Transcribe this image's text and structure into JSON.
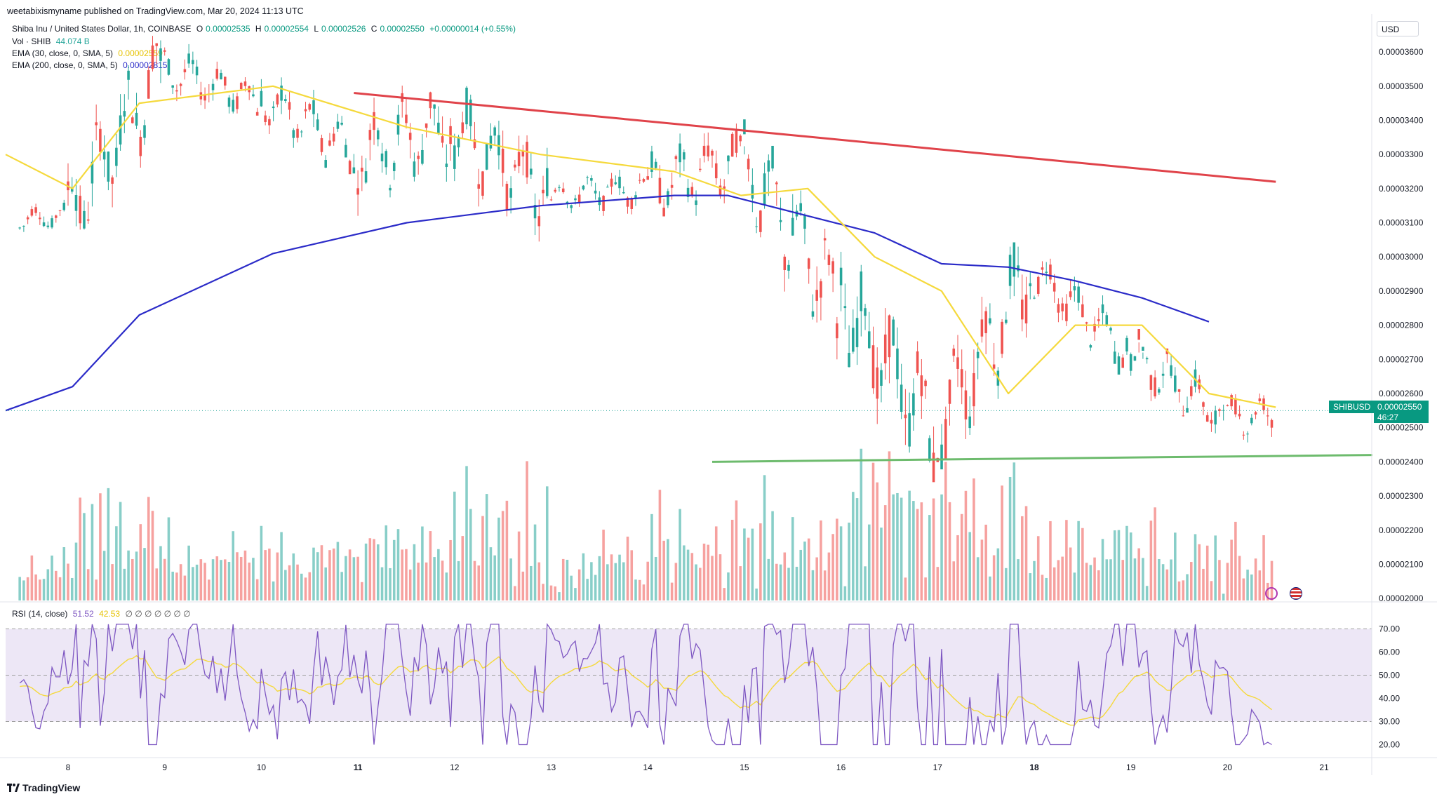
{
  "header": {
    "publisher": "weetabixismyname published on TradingView.com, Mar 20, 2024 11:13 UTC"
  },
  "legend": {
    "symbol": "Shiba Inu / United States Dollar, 1h, COINBASE",
    "open_label": "O",
    "open": "0.00002535",
    "high_label": "H",
    "high": "0.00002554",
    "low_label": "L",
    "low": "0.00002526",
    "close_label": "C",
    "close": "0.00002550",
    "change": "+0.00000014 (+0.55%)",
    "volume_label": "Vol · SHIB",
    "volume_value": "44.074 B",
    "ema30_label": "EMA (30, close, 0, SMA, 5)",
    "ema30_value": "0.00002559",
    "ema200_label": "EMA (200, close, 0, SMA, 5)",
    "ema200_value": "0.00002815"
  },
  "price_axis": {
    "currency": "USD",
    "ticks": [
      "0.00003600",
      "0.00003500",
      "0.00003400",
      "0.00003300",
      "0.00003200",
      "0.00003100",
      "0.00003000",
      "0.00002900",
      "0.00002800",
      "0.00002700",
      "0.00002600",
      "0.00002500",
      "0.00002400",
      "0.00002300",
      "0.00002200",
      "0.00002100",
      "0.00002000"
    ]
  },
  "current_price": {
    "symbol_tag": "SHIBUSD",
    "price": "0.00002550",
    "countdown": "46:27"
  },
  "rsi": {
    "label": "RSI (14, close)",
    "value": "51.52",
    "ma_value": "42.53",
    "ticks": [
      "70.00",
      "60.00",
      "50.00",
      "40.00",
      "30.00",
      "20.00"
    ]
  },
  "time_axis": {
    "ticks": [
      {
        "label": "8",
        "bold": false
      },
      {
        "label": "9",
        "bold": false
      },
      {
        "label": "10",
        "bold": false
      },
      {
        "label": "11",
        "bold": true
      },
      {
        "label": "12",
        "bold": false
      },
      {
        "label": "13",
        "bold": false
      },
      {
        "label": "14",
        "bold": false
      },
      {
        "label": "15",
        "bold": false
      },
      {
        "label": "16",
        "bold": false
      },
      {
        "label": "17",
        "bold": false
      },
      {
        "label": "18",
        "bold": true
      },
      {
        "label": "19",
        "bold": false
      },
      {
        "label": "20",
        "bold": false
      },
      {
        "label": "21",
        "bold": false
      }
    ]
  },
  "brand": "TradingView",
  "colors": {
    "up": "#26a69a",
    "down": "#ef5350",
    "ema30": "#f5d93c",
    "ema200": "#2b2bc8",
    "resistance": "#e0434a",
    "support": "#6dbb6d",
    "rsi_line": "#7e57c2",
    "rsi_ma": "#f5d93c",
    "rsi_band": "#ede7f6"
  },
  "chart_data": {
    "type": "candlestick",
    "title": "Shiba Inu / United States Dollar, 1h, COINBASE",
    "x_range": [
      "2024-03-07",
      "2024-03-21"
    ],
    "y_range": [
      1.99e-05,
      3.67e-05
    ],
    "candles_daily_summary": [
      {
        "date": "2024-03-07",
        "open": 3.1e-05,
        "high": 3.2e-05,
        "low": 3.05e-05,
        "close": 3.12e-05
      },
      {
        "date": "2024-03-08",
        "open": 3.12e-05,
        "high": 3.66e-05,
        "low": 3.08e-05,
        "close": 3.55e-05
      },
      {
        "date": "2024-03-09",
        "open": 3.55e-05,
        "high": 3.68e-05,
        "low": 3.42e-05,
        "close": 3.46e-05
      },
      {
        "date": "2024-03-10",
        "open": 3.46e-05,
        "high": 3.6e-05,
        "low": 3.26e-05,
        "close": 3.31e-05
      },
      {
        "date": "2024-03-11",
        "open": 3.31e-05,
        "high": 3.52e-05,
        "low": 3e-05,
        "close": 3.38e-05
      },
      {
        "date": "2024-03-12",
        "open": 3.38e-05,
        "high": 3.5e-05,
        "low": 3e-05,
        "close": 3.18e-05
      },
      {
        "date": "2024-03-13",
        "open": 3.18e-05,
        "high": 3.33e-05,
        "low": 3.12e-05,
        "close": 3.2e-05
      },
      {
        "date": "2024-03-14",
        "open": 3.2e-05,
        "high": 3.5e-05,
        "low": 3.12e-05,
        "close": 3.28e-05
      },
      {
        "date": "2024-03-15",
        "open": 3.28e-05,
        "high": 3.3e-05,
        "low": 2.7e-05,
        "close": 2.87e-05
      },
      {
        "date": "2024-03-16",
        "open": 2.87e-05,
        "high": 3.03e-05,
        "low": 2.35e-05,
        "close": 2.5e-05
      },
      {
        "date": "2024-03-17",
        "open": 2.5e-05,
        "high": 3.03e-05,
        "low": 2.41e-05,
        "close": 2.96e-05
      },
      {
        "date": "2024-03-18",
        "open": 2.96e-05,
        "high": 3e-05,
        "low": 2.7e-05,
        "close": 2.72e-05
      },
      {
        "date": "2024-03-19",
        "open": 2.72e-05,
        "high": 2.72e-05,
        "low": 2.41e-05,
        "close": 2.53e-05
      },
      {
        "date": "2024-03-20",
        "open": 2.53e-05,
        "high": 2.6e-05,
        "low": 2.37e-05,
        "close": 2.55e-05
      }
    ],
    "ema30": [
      [
        0,
        3.3e-05
      ],
      [
        0.05,
        3.2e-05
      ],
      [
        0.1,
        3.45e-05
      ],
      [
        0.2,
        3.5e-05
      ],
      [
        0.3,
        3.38e-05
      ],
      [
        0.4,
        3.3e-05
      ],
      [
        0.5,
        3.25e-05
      ],
      [
        0.55,
        3.18e-05
      ],
      [
        0.6,
        3.2e-05
      ],
      [
        0.65,
        3e-05
      ],
      [
        0.7,
        2.9e-05
      ],
      [
        0.75,
        2.6e-05
      ],
      [
        0.8,
        2.8e-05
      ],
      [
        0.85,
        2.8e-05
      ],
      [
        0.9,
        2.6e-05
      ],
      [
        0.95,
        2.56e-05
      ]
    ],
    "ema200": [
      [
        0,
        2.55e-05
      ],
      [
        0.05,
        2.62e-05
      ],
      [
        0.1,
        2.83e-05
      ],
      [
        0.2,
        3.01e-05
      ],
      [
        0.3,
        3.1e-05
      ],
      [
        0.4,
        3.15e-05
      ],
      [
        0.5,
        3.18e-05
      ],
      [
        0.54,
        3.18e-05
      ],
      [
        0.6,
        3.12e-05
      ],
      [
        0.65,
        3.07e-05
      ],
      [
        0.7,
        2.98e-05
      ],
      [
        0.75,
        2.97e-05
      ],
      [
        0.8,
        2.93e-05
      ],
      [
        0.85,
        2.88e-05
      ],
      [
        0.9,
        2.81e-05
      ]
    ],
    "trendlines": [
      {
        "name": "resistance",
        "from": [
          "2024-03-10 23:00",
          3.48e-05
        ],
        "to": [
          "2024-03-20 12:00",
          3.22e-05
        ]
      },
      {
        "name": "support",
        "from": [
          "2024-03-14 16:00",
          2.4e-05
        ],
        "to": [
          "2024-03-21 12:00",
          2.42e-05
        ]
      }
    ],
    "rsi_range": [
      15,
      75
    ],
    "rsi_bands": {
      "upper": 70,
      "middle": 50,
      "lower": 30
    },
    "rsi_current": 51.52,
    "rsi_ma_current": 42.53
  }
}
